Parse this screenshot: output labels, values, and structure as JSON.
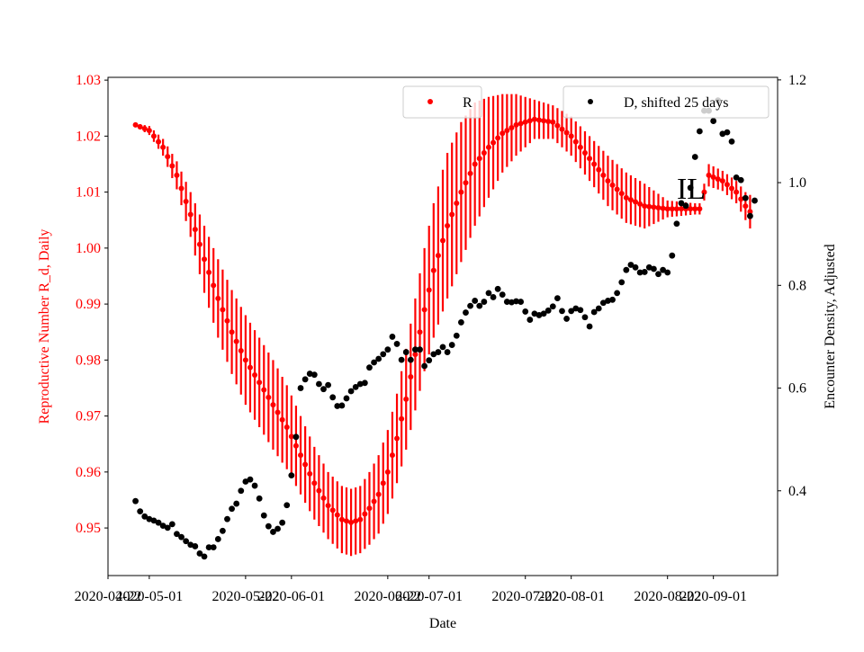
{
  "chart_data": {
    "type": "scatter",
    "title": "",
    "annotation": "IL",
    "xlabel": "Date",
    "ylabel_left": "Reproductive Number R_d, Daily",
    "ylabel_right": "Encounter Density, Adjusted",
    "xlim": [
      "2020-04-22",
      "2020-09-15"
    ],
    "ylim_left": [
      0.9415,
      1.0305
    ],
    "ylim_right": [
      0.235,
      1.205
    ],
    "x_ticks": [
      "2020-04-22",
      "2020-05-01",
      "2020-05-22",
      "2020-06-01",
      "2020-06-22",
      "2020-07-01",
      "2020-07-22",
      "2020-08-01",
      "2020-08-22",
      "2020-09-01"
    ],
    "y_ticks_left": [
      "0.95",
      "0.96",
      "0.97",
      "0.98",
      "0.99",
      "1.00",
      "1.01",
      "1.02",
      "1.03"
    ],
    "y_ticks_right": [
      "0.4",
      "0.6",
      "0.8",
      "1.0",
      "1.2"
    ],
    "grid": false,
    "colors": {
      "R": "#ff0000",
      "D": "#000000",
      "axis": "#000000"
    },
    "legend": [
      {
        "name": "R",
        "placement": "top-center",
        "color": "#ff0000"
      },
      {
        "name": "D, shifted 25 days",
        "placement": "top-right",
        "color": "#000000"
      }
    ],
    "series": [
      {
        "name": "R",
        "axis": "left",
        "marker": "dot-with-errorbar",
        "anchors": [
          [
            "2020-04-28",
            1.022,
            0.0003
          ],
          [
            "2020-05-01",
            1.021,
            0.0008
          ],
          [
            "2020-05-04",
            1.018,
            0.0015
          ],
          [
            "2020-05-07",
            1.013,
            0.0025
          ],
          [
            "2020-05-10",
            1.006,
            0.004
          ],
          [
            "2020-05-13",
            0.998,
            0.006
          ],
          [
            "2020-05-16",
            0.991,
            0.007
          ],
          [
            "2020-05-19",
            0.985,
            0.0075
          ],
          [
            "2020-05-22",
            0.98,
            0.008
          ],
          [
            "2020-05-25",
            0.976,
            0.008
          ],
          [
            "2020-05-28",
            0.972,
            0.008
          ],
          [
            "2020-05-31",
            0.968,
            0.0075
          ],
          [
            "2020-06-03",
            0.963,
            0.007
          ],
          [
            "2020-06-06",
            0.958,
            0.0065
          ],
          [
            "2020-06-09",
            0.954,
            0.006
          ],
          [
            "2020-06-12",
            0.9515,
            0.006
          ],
          [
            "2020-06-14",
            0.951,
            0.006
          ],
          [
            "2020-06-16",
            0.9515,
            0.006
          ],
          [
            "2020-06-18",
            0.9535,
            0.0065
          ],
          [
            "2020-06-20",
            0.956,
            0.007
          ],
          [
            "2020-06-22",
            0.96,
            0.0075
          ],
          [
            "2020-06-24",
            0.966,
            0.008
          ],
          [
            "2020-06-26",
            0.973,
            0.009
          ],
          [
            "2020-06-28",
            0.981,
            0.01
          ],
          [
            "2020-06-30",
            0.989,
            0.011
          ],
          [
            "2020-07-02",
            0.996,
            0.012
          ],
          [
            "2020-07-05",
            1.004,
            0.013
          ],
          [
            "2020-07-08",
            1.01,
            0.0125
          ],
          [
            "2020-07-11",
            1.015,
            0.011
          ],
          [
            "2020-07-14",
            1.018,
            0.009
          ],
          [
            "2020-07-17",
            1.0205,
            0.007
          ],
          [
            "2020-07-20",
            1.022,
            0.0055
          ],
          [
            "2020-07-24",
            1.023,
            0.0035
          ],
          [
            "2020-07-28",
            1.0225,
            0.003
          ],
          [
            "2020-08-01",
            1.02,
            0.0035
          ],
          [
            "2020-08-05",
            1.016,
            0.004
          ],
          [
            "2020-08-09",
            1.012,
            0.0045
          ],
          [
            "2020-08-13",
            1.009,
            0.0045
          ],
          [
            "2020-08-17",
            1.0075,
            0.004
          ],
          [
            "2020-08-22",
            1.007,
            0.0015
          ],
          [
            "2020-08-28",
            1.007,
            0.001
          ],
          [
            "2020-08-29",
            1.007,
            0.001
          ],
          [
            "2020-08-31",
            1.013,
            0.002
          ],
          [
            "2020-09-03",
            1.012,
            0.0018
          ],
          [
            "2020-09-06",
            1.01,
            0.002
          ],
          [
            "2020-09-08",
            1.0075,
            0.0025
          ],
          [
            "2020-09-09",
            1.0065,
            0.003
          ]
        ]
      },
      {
        "name": "D, shifted 25 days",
        "axis": "right",
        "marker": "dot",
        "points": [
          [
            "2020-04-28",
            0.38
          ],
          [
            "2020-04-29",
            0.36
          ],
          [
            "2020-04-30",
            0.35
          ],
          [
            "2020-05-01",
            0.345
          ],
          [
            "2020-05-02",
            0.342
          ],
          [
            "2020-05-03",
            0.338
          ],
          [
            "2020-05-04",
            0.332
          ],
          [
            "2020-05-05",
            0.328
          ],
          [
            "2020-05-06",
            0.335
          ],
          [
            "2020-05-07",
            0.316
          ],
          [
            "2020-05-08",
            0.31
          ],
          [
            "2020-05-09",
            0.302
          ],
          [
            "2020-05-10",
            0.295
          ],
          [
            "2020-05-11",
            0.292
          ],
          [
            "2020-05-12",
            0.278
          ],
          [
            "2020-05-13",
            0.272
          ],
          [
            "2020-05-14",
            0.29
          ],
          [
            "2020-05-15",
            0.29
          ],
          [
            "2020-05-16",
            0.306
          ],
          [
            "2020-05-17",
            0.322
          ],
          [
            "2020-05-18",
            0.345
          ],
          [
            "2020-05-19",
            0.365
          ],
          [
            "2020-05-20",
            0.375
          ],
          [
            "2020-05-21",
            0.4
          ],
          [
            "2020-05-22",
            0.418
          ],
          [
            "2020-05-23",
            0.422
          ],
          [
            "2020-05-24",
            0.41
          ],
          [
            "2020-05-25",
            0.385
          ],
          [
            "2020-05-26",
            0.352
          ],
          [
            "2020-05-27",
            0.331
          ],
          [
            "2020-05-28",
            0.32
          ],
          [
            "2020-05-29",
            0.326
          ],
          [
            "2020-05-30",
            0.338
          ],
          [
            "2020-05-31",
            0.372
          ],
          [
            "2020-06-01",
            0.43
          ],
          [
            "2020-06-02",
            0.505
          ],
          [
            "2020-06-03",
            0.6
          ],
          [
            "2020-06-04",
            0.617
          ],
          [
            "2020-06-05",
            0.628
          ],
          [
            "2020-06-06",
            0.626
          ],
          [
            "2020-06-07",
            0.608
          ],
          [
            "2020-06-08",
            0.598
          ],
          [
            "2020-06-09",
            0.606
          ],
          [
            "2020-06-10",
            0.582
          ],
          [
            "2020-06-11",
            0.565
          ],
          [
            "2020-06-12",
            0.566
          ],
          [
            "2020-06-13",
            0.58
          ],
          [
            "2020-06-14",
            0.594
          ],
          [
            "2020-06-15",
            0.602
          ],
          [
            "2020-06-16",
            0.608
          ],
          [
            "2020-06-17",
            0.61
          ],
          [
            "2020-06-18",
            0.64
          ],
          [
            "2020-06-19",
            0.65
          ],
          [
            "2020-06-20",
            0.657
          ],
          [
            "2020-06-21",
            0.666
          ],
          [
            "2020-06-22",
            0.675
          ],
          [
            "2020-06-23",
            0.7
          ],
          [
            "2020-06-24",
            0.686
          ],
          [
            "2020-06-25",
            0.655
          ],
          [
            "2020-06-26",
            0.67
          ],
          [
            "2020-06-27",
            0.655
          ],
          [
            "2020-06-28",
            0.675
          ],
          [
            "2020-06-29",
            0.675
          ],
          [
            "2020-06-30",
            0.643
          ],
          [
            "2020-07-01",
            0.654
          ],
          [
            "2020-07-02",
            0.666
          ],
          [
            "2020-07-03",
            0.67
          ],
          [
            "2020-07-04",
            0.68
          ],
          [
            "2020-07-05",
            0.67
          ],
          [
            "2020-07-06",
            0.684
          ],
          [
            "2020-07-07",
            0.702
          ],
          [
            "2020-07-08",
            0.728
          ],
          [
            "2020-07-09",
            0.747
          ],
          [
            "2020-07-10",
            0.76
          ],
          [
            "2020-07-11",
            0.77
          ],
          [
            "2020-07-12",
            0.76
          ],
          [
            "2020-07-13",
            0.768
          ],
          [
            "2020-07-14",
            0.785
          ],
          [
            "2020-07-15",
            0.777
          ],
          [
            "2020-07-16",
            0.793
          ],
          [
            "2020-07-17",
            0.782
          ],
          [
            "2020-07-18",
            0.768
          ],
          [
            "2020-07-19",
            0.767
          ],
          [
            "2020-07-20",
            0.769
          ],
          [
            "2020-07-21",
            0.768
          ],
          [
            "2020-07-22",
            0.749
          ],
          [
            "2020-07-23",
            0.733
          ],
          [
            "2020-07-24",
            0.745
          ],
          [
            "2020-07-25",
            0.742
          ],
          [
            "2020-07-26",
            0.745
          ],
          [
            "2020-07-27",
            0.751
          ],
          [
            "2020-07-28",
            0.759
          ],
          [
            "2020-07-29",
            0.775
          ],
          [
            "2020-07-30",
            0.75
          ],
          [
            "2020-07-31",
            0.735
          ],
          [
            "2020-08-01",
            0.75
          ],
          [
            "2020-08-02",
            0.755
          ],
          [
            "2020-08-03",
            0.752
          ],
          [
            "2020-08-04",
            0.738
          ],
          [
            "2020-08-05",
            0.72
          ],
          [
            "2020-08-06",
            0.748
          ],
          [
            "2020-08-07",
            0.755
          ],
          [
            "2020-08-08",
            0.766
          ],
          [
            "2020-08-09",
            0.77
          ],
          [
            "2020-08-10",
            0.772
          ],
          [
            "2020-08-11",
            0.785
          ],
          [
            "2020-08-12",
            0.806
          ],
          [
            "2020-08-13",
            0.83
          ],
          [
            "2020-08-14",
            0.84
          ],
          [
            "2020-08-15",
            0.835
          ],
          [
            "2020-08-16",
            0.825
          ],
          [
            "2020-08-17",
            0.826
          ],
          [
            "2020-08-18",
            0.835
          ],
          [
            "2020-08-19",
            0.832
          ],
          [
            "2020-08-20",
            0.822
          ],
          [
            "2020-08-21",
            0.83
          ],
          [
            "2020-08-22",
            0.825
          ],
          [
            "2020-08-23",
            0.858
          ],
          [
            "2020-08-24",
            0.92
          ],
          [
            "2020-08-25",
            0.96
          ],
          [
            "2020-08-26",
            0.955
          ],
          [
            "2020-08-27",
            0.99
          ],
          [
            "2020-08-28",
            1.05
          ],
          [
            "2020-08-29",
            1.1
          ],
          [
            "2020-08-30",
            1.14
          ],
          [
            "2020-08-31",
            1.14
          ],
          [
            "2020-09-01",
            1.12
          ],
          [
            "2020-09-02",
            1.16
          ],
          [
            "2020-09-03",
            1.095
          ],
          [
            "2020-09-04",
            1.098
          ],
          [
            "2020-09-05",
            1.08
          ],
          [
            "2020-09-06",
            1.01
          ],
          [
            "2020-09-07",
            1.005
          ],
          [
            "2020-09-08",
            0.97
          ],
          [
            "2020-09-09",
            0.935
          ],
          [
            "2020-09-10",
            0.965
          ]
        ]
      }
    ]
  }
}
